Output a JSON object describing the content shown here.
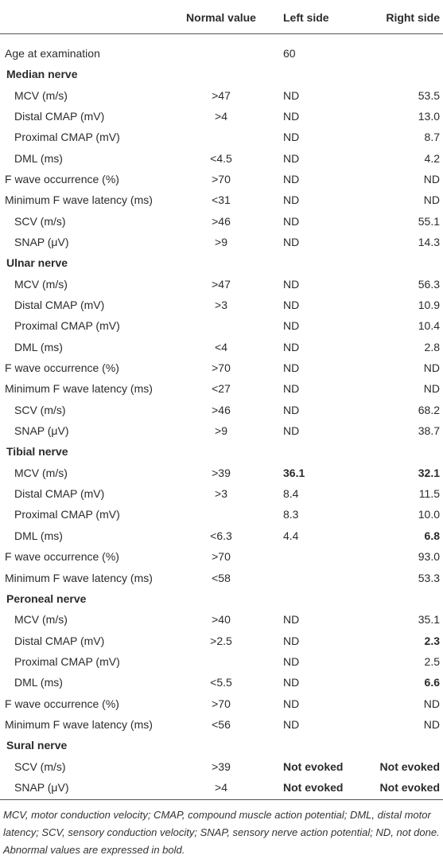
{
  "table": {
    "columns": [
      "Normal value",
      "Left side",
      "Right side"
    ],
    "rows": [
      {
        "label": "Age at examination",
        "indent": false,
        "left": "60"
      },
      {
        "label": "Median nerve",
        "section": true
      },
      {
        "label": "MCV (m/s)",
        "indent": true,
        "normal": ">47",
        "left": "ND",
        "right": "53.5"
      },
      {
        "label": "Distal CMAP (mV)",
        "indent": true,
        "normal": ">4",
        "left": "ND",
        "right": "13.0"
      },
      {
        "label": "Proximal CMAP (mV)",
        "indent": true,
        "left": "ND",
        "right": "8.7"
      },
      {
        "label": "DML (ms)",
        "indent": true,
        "normal": "<4.5",
        "left": "ND",
        "right": "4.2"
      },
      {
        "label": "F wave occurrence (%)",
        "indent": false,
        "normal": ">70",
        "left": "ND",
        "right": "ND"
      },
      {
        "label": "Minimum F wave latency (ms)",
        "indent": false,
        "normal": "<31",
        "left": "ND",
        "right": "ND"
      },
      {
        "label": "SCV (m/s)",
        "indent": true,
        "normal": ">46",
        "left": "ND",
        "right": "55.1"
      },
      {
        "label": "SNAP (μV)",
        "indent": true,
        "normal": ">9",
        "left": "ND",
        "right": "14.3"
      },
      {
        "label": "Ulnar nerve",
        "section": true
      },
      {
        "label": "MCV (m/s)",
        "indent": true,
        "normal": ">47",
        "left": "ND",
        "right": "56.3"
      },
      {
        "label": "Distal CMAP (mV)",
        "indent": true,
        "normal": ">3",
        "left": "ND",
        "right": "10.9"
      },
      {
        "label": "Proximal CMAP (mV)",
        "indent": true,
        "left": "ND",
        "right": "10.4"
      },
      {
        "label": "DML (ms)",
        "indent": true,
        "normal": "<4",
        "left": "ND",
        "right": "2.8"
      },
      {
        "label": "F wave occurrence (%)",
        "indent": false,
        "normal": ">70",
        "left": "ND",
        "right": "ND"
      },
      {
        "label": "Minimum F wave latency (ms)",
        "indent": false,
        "normal": "<27",
        "left": "ND",
        "right": "ND"
      },
      {
        "label": "SCV (m/s)",
        "indent": true,
        "normal": ">46",
        "left": "ND",
        "right": "68.2"
      },
      {
        "label": "SNAP (μV)",
        "indent": true,
        "normal": ">9",
        "left": "ND",
        "right": "38.7"
      },
      {
        "label": "Tibial nerve",
        "section": true
      },
      {
        "label": "MCV (m/s)",
        "indent": true,
        "normal": ">39",
        "left": {
          "text": "36.1",
          "bold": true
        },
        "right": {
          "text": "32.1",
          "bold": true
        }
      },
      {
        "label": "Distal CMAP (mV)",
        "indent": true,
        "normal": ">3",
        "left": "8.4",
        "right": "11.5"
      },
      {
        "label": "Proximal CMAP (mV)",
        "indent": true,
        "left": "8.3",
        "right": "10.0"
      },
      {
        "label": "DML (ms)",
        "indent": true,
        "normal": "<6.3",
        "left": "4.4",
        "right": {
          "text": "6.8",
          "bold": true
        }
      },
      {
        "label": "F wave occurrence (%)",
        "indent": false,
        "normal": ">70",
        "right": "93.0"
      },
      {
        "label": "Minimum F wave latency (ms)",
        "indent": false,
        "normal": "<58",
        "right": "53.3"
      },
      {
        "label": "Peroneal nerve",
        "section": true
      },
      {
        "label": "MCV (m/s)",
        "indent": true,
        "normal": ">40",
        "left": "ND",
        "right": "35.1"
      },
      {
        "label": "Distal CMAP (mV)",
        "indent": true,
        "normal": ">2.5",
        "left": "ND",
        "right": {
          "text": "2.3",
          "bold": true
        }
      },
      {
        "label": "Proximal CMAP (mV)",
        "indent": true,
        "left": "ND",
        "right": "2.5"
      },
      {
        "label": "DML (ms)",
        "indent": true,
        "normal": "<5.5",
        "left": "ND",
        "right": {
          "text": "6.6",
          "bold": true
        }
      },
      {
        "label": "F wave occurrence (%)",
        "indent": false,
        "normal": ">70",
        "left": "ND",
        "right": "ND"
      },
      {
        "label": "Minimum F wave latency (ms)",
        "indent": false,
        "normal": "<56",
        "left": "ND",
        "right": "ND"
      },
      {
        "label": "Sural nerve",
        "section": true
      },
      {
        "label": "SCV (m/s)",
        "indent": true,
        "normal": ">39",
        "left": {
          "text": "Not evoked",
          "bold": true
        },
        "right": {
          "text": "Not evoked",
          "bold": true
        }
      },
      {
        "label": "SNAP (μV)",
        "indent": true,
        "normal": ">4",
        "left": {
          "text": "Not evoked",
          "bold": true
        },
        "right": {
          "text": "Not evoked",
          "bold": true
        }
      }
    ],
    "footnote": "MCV, motor conduction velocity; CMAP, compound muscle action potential; DML, distal motor latency; SCV, sensory conduction velocity; SNAP, sensory nerve action potential; ND, not done. Abnormal values are expressed in bold."
  }
}
